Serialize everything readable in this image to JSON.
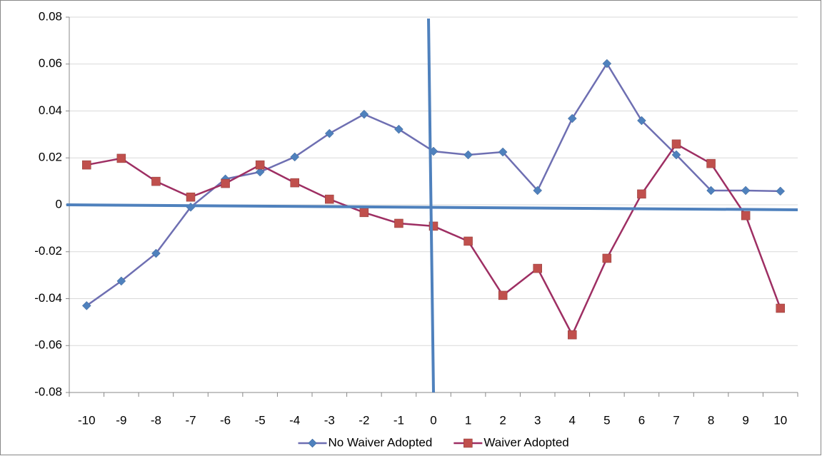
{
  "chart_data": {
    "type": "line",
    "categories": [
      -10,
      -9,
      -8,
      -7,
      -6,
      -5,
      -4,
      -3,
      -2,
      -1,
      0,
      1,
      2,
      3,
      4,
      5,
      6,
      7,
      8,
      9,
      10
    ],
    "series": [
      {
        "name": "No Waiver Adopted",
        "marker": "diamond",
        "color": "#4f81bd",
        "line_color": "#6e6fb2",
        "values": [
          -0.043,
          -0.0325,
          -0.0207,
          -0.001,
          0.011,
          0.014,
          0.0204,
          0.0304,
          0.0386,
          0.0322,
          0.0228,
          0.0213,
          0.0225,
          0.0061,
          0.0368,
          0.0602,
          0.0359,
          0.0213,
          0.0061,
          0.0061,
          0.0058
        ]
      },
      {
        "name": "Waiver Adopted",
        "marker": "square",
        "color": "#c0504d",
        "line_color": "#9e2f63",
        "values": [
          0.017,
          0.0198,
          0.01,
          0.0033,
          0.0091,
          0.017,
          0.0094,
          0.0024,
          -0.0033,
          -0.0079,
          -0.0091,
          -0.0155,
          -0.0386,
          -0.0271,
          -0.0554,
          -0.0228,
          0.0046,
          0.0259,
          0.0176,
          -0.0046,
          -0.0441
        ]
      }
    ],
    "ylim": [
      -0.08,
      0.08
    ],
    "yticks": [
      -0.08,
      -0.06,
      -0.04,
      -0.02,
      0,
      0.02,
      0.04,
      0.06,
      0.08
    ],
    "grid": true,
    "legend": "bottom"
  }
}
